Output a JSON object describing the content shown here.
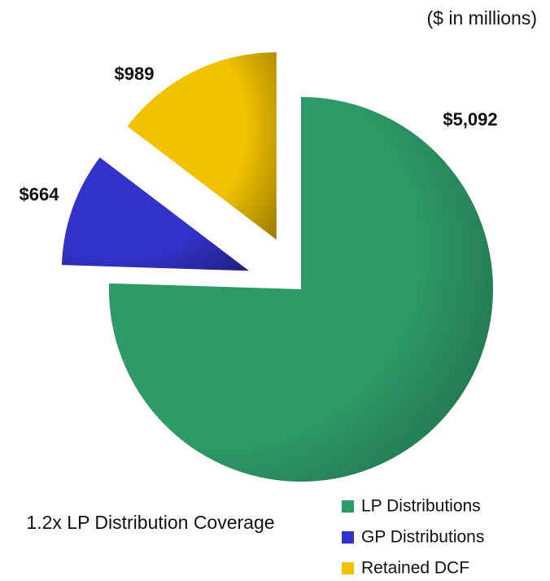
{
  "chart_data": {
    "type": "pie",
    "subtitle": "($ in millions)",
    "categories": [
      "LP Distributions",
      "GP Distributions",
      "Retained DCF"
    ],
    "values": [
      5092,
      664,
      989
    ],
    "value_labels": [
      "$5,092",
      "$664",
      "$989"
    ],
    "colors": [
      "#2e9a68",
      "#3232c8",
      "#f2c200"
    ],
    "annotation": "1.2x LP Distribution Coverage",
    "legend": "lower right"
  }
}
